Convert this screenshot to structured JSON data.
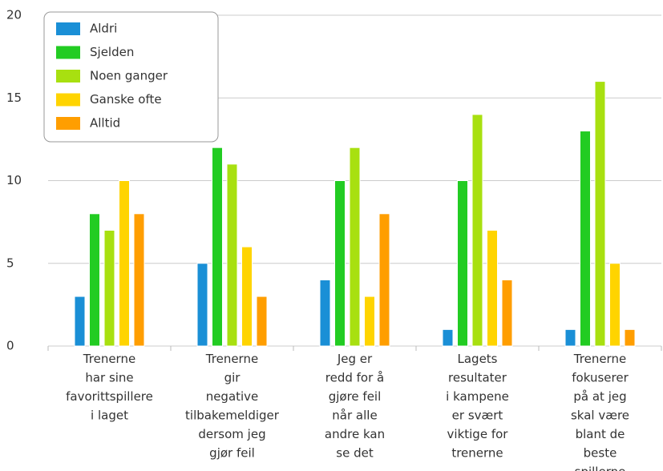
{
  "chart_data": {
    "type": "bar",
    "categories": [
      "Trenerne\nhar sine\nfavorittspillere\ni laget",
      "Trenerne\ngir\nnegative\ntilbakemeldiger\ndersom jeg\ngjør feil",
      "Jeg er\nredd for å\ngjøre feil\nnår alle\nandre kan\nse det",
      "Lagets\nresultater\ni kampene\ner svært\nviktige for\ntrenerne",
      "Trenerne\nfokuserer\npå at jeg\nskal være\nblant de\nbeste\nspillerne"
    ],
    "series": [
      {
        "name": "Aldri",
        "color": "#1a8fd6",
        "values": [
          3,
          5,
          4,
          1,
          1
        ]
      },
      {
        "name": "Sjelden",
        "color": "#22cc22",
        "values": [
          8,
          12,
          10,
          10,
          13
        ]
      },
      {
        "name": "Noen ganger",
        "color": "#a8e010",
        "values": [
          7,
          11,
          12,
          14,
          16
        ]
      },
      {
        "name": "Ganske ofte",
        "color": "#ffd400",
        "values": [
          10,
          6,
          3,
          7,
          5
        ]
      },
      {
        "name": "Alltid",
        "color": "#ff9e00",
        "values": [
          8,
          3,
          8,
          4,
          1
        ]
      }
    ],
    "ylim": [
      0,
      20
    ],
    "yticks": [
      0,
      5,
      10,
      15,
      20
    ],
    "grid": true,
    "legend": "top-left"
  }
}
